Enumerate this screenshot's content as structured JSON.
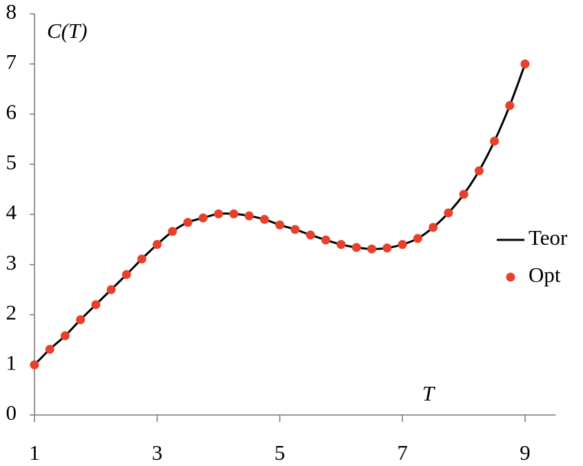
{
  "chart_data": {
    "type": "line",
    "y_label": "C(T)",
    "x_label": "T",
    "x": [
      1,
      1.25,
      1.5,
      1.75,
      2,
      2.25,
      2.5,
      2.75,
      3,
      3.25,
      3.5,
      3.75,
      4,
      4.25,
      4.5,
      4.75,
      5,
      5.25,
      5.5,
      5.75,
      6,
      6.25,
      6.5,
      6.75,
      7,
      7.25,
      7.5,
      7.75,
      8,
      8.25,
      8.5,
      8.75,
      9
    ],
    "series": [
      {
        "name": "Teor",
        "color": "#000000",
        "style": "line",
        "values": [
          1.0,
          1.31,
          1.58,
          1.9,
          2.2,
          2.5,
          2.8,
          3.11,
          3.4,
          3.66,
          3.84,
          3.93,
          4.01,
          4.01,
          3.97,
          3.9,
          3.79,
          3.7,
          3.59,
          3.49,
          3.4,
          3.34,
          3.31,
          3.33,
          3.4,
          3.52,
          3.74,
          4.03,
          4.4,
          4.87,
          5.46,
          6.17,
          7.0
        ]
      },
      {
        "name": "Opt",
        "color": "#e8412b",
        "style": "markers",
        "values": [
          1.0,
          1.31,
          1.58,
          1.9,
          2.2,
          2.5,
          2.8,
          3.11,
          3.4,
          3.66,
          3.84,
          3.93,
          4.01,
          4.01,
          3.97,
          3.9,
          3.79,
          3.7,
          3.59,
          3.49,
          3.4,
          3.34,
          3.31,
          3.33,
          3.4,
          3.52,
          3.74,
          4.03,
          4.4,
          4.87,
          5.46,
          6.17,
          7.0
        ]
      }
    ],
    "xlim": [
      1,
      9.5
    ],
    "xticks": [
      1,
      3,
      5,
      7,
      9
    ],
    "ylim": [
      0,
      8
    ],
    "yticks": [
      0,
      1,
      2,
      3,
      4,
      5,
      6,
      7,
      8
    ],
    "grid": false,
    "legend": "right"
  }
}
